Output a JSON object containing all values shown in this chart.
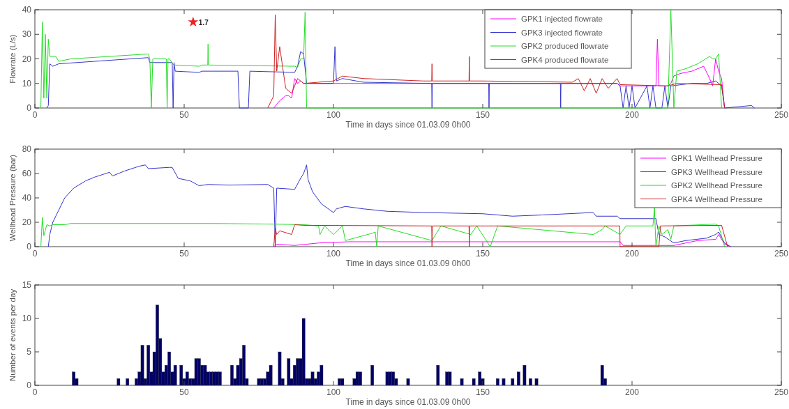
{
  "chart_data": [
    {
      "type": "line",
      "xlabel": "Time in days since 01.03.09 0h00",
      "ylabel": "Flowrate (L/s)",
      "xlim": [
        0,
        250
      ],
      "xticks": [
        0,
        50,
        100,
        150,
        200,
        250
      ],
      "ylim": [
        0,
        40
      ],
      "yticks": [
        0,
        10,
        20,
        30,
        40
      ],
      "legend": "top",
      "annotations": [
        {
          "text": "1.7",
          "x": 53,
          "y": 35
        }
      ],
      "series": [
        {
          "name": "GPK1 injected flowrate",
          "color": "#ff00ff",
          "x": [
            80,
            82,
            84,
            85,
            86,
            87,
            88,
            89,
            90,
            92,
            100,
            195,
            196,
            205,
            208,
            208.5,
            209,
            212,
            213,
            214,
            216,
            220,
            222,
            224,
            226,
            227,
            228,
            229,
            230,
            231
          ],
          "values": [
            0,
            3,
            5,
            5,
            4,
            12,
            10,
            11,
            10,
            10,
            10,
            10,
            9,
            9,
            9,
            28,
            9,
            9,
            10,
            13,
            14,
            15,
            16,
            17,
            12,
            9,
            20,
            15,
            12,
            0
          ]
        },
        {
          "name": "GPK3 injected flowrate",
          "color": "#3333cc",
          "x": [
            4,
            4.5,
            5,
            6,
            8,
            20,
            38,
            38.5,
            46,
            46.3,
            46.6,
            47,
            55,
            56,
            68,
            68.5,
            71.5,
            72,
            87,
            88,
            89,
            90,
            91,
            92,
            100,
            100.5,
            101,
            103,
            110,
            132.9,
            133,
            133.1,
            152,
            152.1,
            152.2,
            176,
            176.1,
            176.2,
            195,
            196,
            197,
            198,
            199,
            200,
            201,
            205,
            206,
            207,
            208,
            210,
            211,
            212,
            213,
            220,
            225,
            228,
            230,
            231,
            240,
            241
          ],
          "values": [
            0,
            1,
            18,
            17,
            18,
            19,
            20.5,
            18.5,
            18.5,
            0,
            18.5,
            15,
            14.5,
            15,
            15,
            0,
            0,
            15,
            14.5,
            17,
            23,
            22,
            10,
            10,
            10,
            25,
            11,
            12,
            10.5,
            10,
            0,
            10,
            10,
            0,
            10,
            10,
            0,
            10,
            10,
            9,
            0,
            9,
            0,
            9,
            0,
            9,
            0,
            9,
            0,
            0,
            9,
            0,
            9,
            10,
            10,
            11,
            9,
            0,
            1,
            0
          ]
        },
        {
          "name": "GPK2 produced flowrate",
          "color": "#22dd22",
          "x": [
            2,
            2.5,
            3,
            3.5,
            4,
            4.5,
            5,
            7,
            8,
            12,
            38,
            38.5,
            39,
            39.5,
            40,
            44,
            44.3,
            44.6,
            45,
            46.5,
            47,
            55,
            56,
            57.9,
            58,
            58.1,
            87,
            88,
            89,
            90,
            90.5,
            91,
            92,
            212,
            213,
            214,
            215,
            218,
            222,
            226,
            227,
            228,
            229,
            230
          ],
          "values": [
            0,
            35,
            4,
            30,
            4,
            28,
            21,
            21,
            19,
            20,
            22,
            20,
            0,
            20,
            20,
            20,
            0,
            20,
            20,
            17.5,
            17.5,
            17,
            17.5,
            17.5,
            26,
            17.5,
            17,
            16.5,
            20,
            20,
            39,
            0,
            0,
            0,
            40,
            0,
            15,
            16,
            18,
            21,
            20,
            20,
            22,
            0
          ]
        },
        {
          "name": "GPK4 produced flowrate",
          "color": "#cc2222",
          "x": [
            78,
            80,
            80.5,
            81,
            82,
            84,
            86,
            88,
            90,
            95,
            100,
            103,
            110,
            130,
            132.9,
            133,
            133.1,
            145.4,
            145.5,
            145.6,
            150,
            180,
            182,
            184,
            186,
            188,
            190,
            192,
            195,
            196,
            212,
            215,
            230,
            231
          ],
          "values": [
            0,
            5,
            38,
            15,
            25,
            8,
            6,
            12,
            10,
            10.5,
            11,
            13,
            12,
            11,
            11,
            18,
            11,
            11,
            21,
            11,
            11,
            10.5,
            12,
            7,
            12,
            6,
            12,
            8,
            12,
            9.5,
            9,
            10,
            9.5,
            0
          ]
        },
        {
          "type": "scatter",
          "marker": "star",
          "color": "#ee2222",
          "x": [
            53
          ],
          "values": [
            35
          ]
        }
      ]
    },
    {
      "type": "line",
      "xlabel": "Time in days since 01.03.09 0h00",
      "ylabel": "Wellhead Pressure (bar)",
      "xlim": [
        0,
        250
      ],
      "xticks": [
        0,
        50,
        100,
        150,
        200,
        250
      ],
      "ylim": [
        0,
        80
      ],
      "yticks": [
        0,
        20,
        40,
        60,
        80
      ],
      "legend": "top right",
      "series": [
        {
          "name": "GPK1 Wellhead Pressure",
          "color": "#ff00ff",
          "x": [
            80,
            81,
            87,
            95,
            105,
            196,
            197,
            214,
            222,
            228,
            229,
            231,
            233
          ],
          "values": [
            0,
            2,
            1,
            3,
            4,
            4,
            1,
            1,
            5,
            6,
            10,
            2,
            0
          ]
        },
        {
          "name": "GPK3 Wellhead Pressure",
          "color": "#3333cc",
          "x": [
            4.5,
            5,
            6,
            8,
            10,
            13,
            17,
            20,
            25,
            26,
            30,
            35,
            37,
            38,
            45,
            46,
            48,
            52,
            55,
            58,
            65,
            78,
            80,
            80.5,
            81,
            87,
            89,
            90,
            91,
            91.5,
            93,
            96,
            100,
            101,
            104,
            110,
            118,
            130,
            150,
            160,
            170,
            187,
            188,
            195,
            196,
            208,
            209,
            211,
            214,
            218,
            225,
            228,
            229,
            231,
            233
          ],
          "values": [
            0,
            10,
            20,
            30,
            40,
            48,
            54,
            57,
            61,
            58,
            62,
            66,
            67,
            64,
            65,
            65,
            56,
            54,
            50,
            51,
            50.5,
            51,
            48,
            0,
            48,
            47,
            56,
            60,
            67,
            55,
            45,
            35,
            28,
            31,
            33,
            31,
            29,
            28,
            27,
            25,
            26,
            28,
            25,
            25,
            23,
            23,
            10,
            8,
            3,
            5,
            7,
            10,
            12,
            3,
            0
          ]
        },
        {
          "name": "GPK2 Wellhead Pressure",
          "color": "#22dd22",
          "x": [
            2,
            2.5,
            3,
            4,
            5,
            6,
            10,
            12,
            60,
            80,
            90,
            95,
            95.5,
            97,
            100,
            103,
            104,
            113,
            114,
            114.5,
            115,
            133,
            136,
            146,
            148,
            152.5,
            155,
            187,
            190,
            191,
            196,
            198,
            207,
            207.5,
            208,
            209,
            210,
            212,
            213,
            214,
            228,
            229,
            231
          ],
          "values": [
            0,
            24,
            9,
            18,
            17,
            18,
            18,
            19,
            19,
            18.5,
            18,
            17,
            10,
            17,
            10,
            17,
            5,
            11,
            12,
            0,
            17,
            5,
            17,
            10,
            17,
            0,
            17,
            10,
            14,
            17,
            10,
            17,
            17,
            32,
            0,
            17,
            10,
            14,
            6,
            17,
            18.5,
            17,
            0
          ]
        },
        {
          "name": "GPK4 Wellhead Pressure",
          "color": "#cc2222",
          "x": [
            80,
            80.5,
            81,
            82,
            86,
            87,
            90,
            132.9,
            133,
            133.1,
            145.4,
            145.5,
            145.6,
            195.9,
            196,
            209,
            209.5,
            230,
            232
          ],
          "values": [
            0,
            15,
            10,
            13,
            10,
            18,
            17.5,
            17,
            0,
            17,
            17,
            0,
            17,
            17,
            0,
            0,
            17,
            17.5,
            0
          ]
        }
      ]
    },
    {
      "type": "bar",
      "xlabel": "Time in days since 01.03.09 0h00",
      "ylabel": "Number of events per day",
      "xlim": [
        0,
        250
      ],
      "xticks": [
        0,
        50,
        100,
        150,
        200,
        250
      ],
      "ylim": [
        0,
        15
      ],
      "yticks": [
        0,
        5,
        10,
        15
      ],
      "color": "#000066",
      "x": [
        13,
        14,
        28,
        31,
        34,
        35,
        36,
        37,
        38,
        39,
        40,
        41,
        42,
        43,
        44,
        45,
        46,
        47,
        49,
        50,
        51,
        52,
        53,
        54,
        55,
        56,
        57,
        58,
        59,
        60,
        61,
        62,
        66,
        67,
        68,
        69,
        70,
        71,
        75,
        76,
        77,
        78,
        79,
        82,
        83,
        85,
        86,
        87,
        88,
        89,
        90,
        91,
        92,
        93,
        94,
        95,
        96,
        102,
        103,
        107,
        108,
        109,
        113,
        118,
        119,
        120,
        121,
        125,
        135,
        138,
        139,
        143,
        147,
        149,
        150,
        155,
        157,
        160,
        162,
        164,
        166,
        168,
        190,
        191
      ],
      "values": [
        2,
        1,
        1,
        1,
        1,
        2,
        6,
        1,
        6,
        2,
        5,
        12,
        7,
        2,
        3,
        5,
        2,
        3,
        3,
        1,
        2,
        1,
        1,
        4,
        4,
        3,
        3,
        2,
        2,
        2,
        2,
        2,
        3,
        1,
        3,
        4,
        6,
        1,
        1,
        1,
        1,
        2,
        3,
        5,
        1,
        4,
        1,
        3,
        4,
        4,
        10,
        1,
        1,
        2,
        1,
        2,
        3,
        1,
        1,
        1,
        2,
        2,
        3,
        2,
        2,
        2,
        1,
        1,
        3,
        2,
        2,
        1,
        1,
        2,
        1,
        1,
        1,
        1,
        2,
        3,
        1,
        1,
        3,
        1
      ]
    }
  ]
}
